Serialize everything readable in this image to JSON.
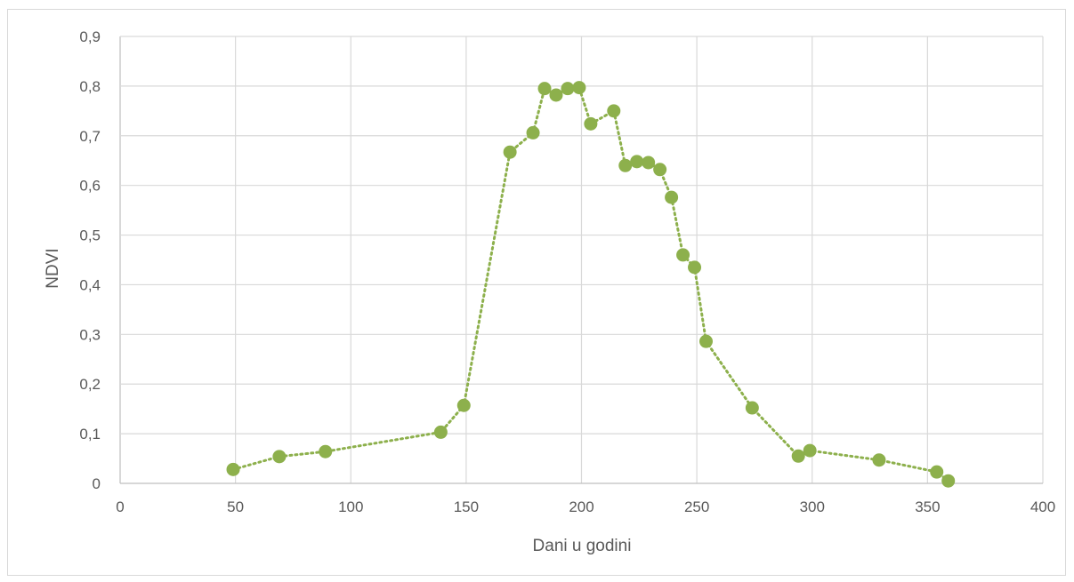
{
  "chart_data": {
    "type": "line",
    "title": "",
    "xlabel": "Dani u godini",
    "ylabel": "NDVI",
    "xlim": [
      0,
      400
    ],
    "ylim": [
      0,
      0.9
    ],
    "x_ticks": [
      "0",
      "50",
      "100",
      "150",
      "200",
      "250",
      "300",
      "350",
      "400"
    ],
    "y_ticks": [
      "0",
      "0,1",
      "0,2",
      "0,3",
      "0,4",
      "0,5",
      "0,6",
      "0,7",
      "0,8",
      "0,9"
    ],
    "grid": true,
    "legend": "none",
    "line_style": "dotted",
    "series": [
      {
        "color": "#8db04c",
        "x": [
          49,
          69,
          89,
          139,
          149,
          169,
          179,
          184,
          189,
          194,
          199,
          204,
          214,
          219,
          224,
          229,
          234,
          239,
          244,
          249,
          254,
          274,
          294,
          299,
          329,
          354,
          359
        ],
        "y": [
          0.028,
          0.054,
          0.064,
          0.103,
          0.157,
          0.667,
          0.706,
          0.795,
          0.782,
          0.795,
          0.797,
          0.724,
          0.75,
          0.64,
          0.648,
          0.646,
          0.632,
          0.576,
          0.46,
          0.435,
          0.286,
          0.152,
          0.055,
          0.066,
          0.047,
          0.023,
          0.005
        ]
      }
    ]
  },
  "colors": {
    "gridline": "#d9d9d9",
    "axis": "#bfbfbf",
    "series": "#8db04c"
  }
}
